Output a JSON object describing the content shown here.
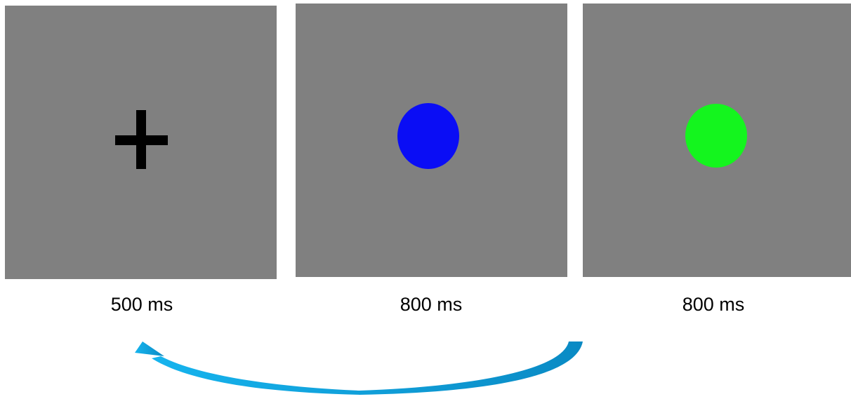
{
  "frames": [
    {
      "stimulus": "fixation-cross",
      "color": "#000000",
      "duration": "500 ms"
    },
    {
      "stimulus": "circle",
      "color": "#0a0df5",
      "duration": "800 ms"
    },
    {
      "stimulus": "circle",
      "color": "#14f51e",
      "duration": "800 ms"
    }
  ],
  "background_color": "#808080",
  "arrow": {
    "direction": "from frame 3 back to frame 1",
    "color_start": "#0a8ac4",
    "color_end": "#16b4ee"
  }
}
